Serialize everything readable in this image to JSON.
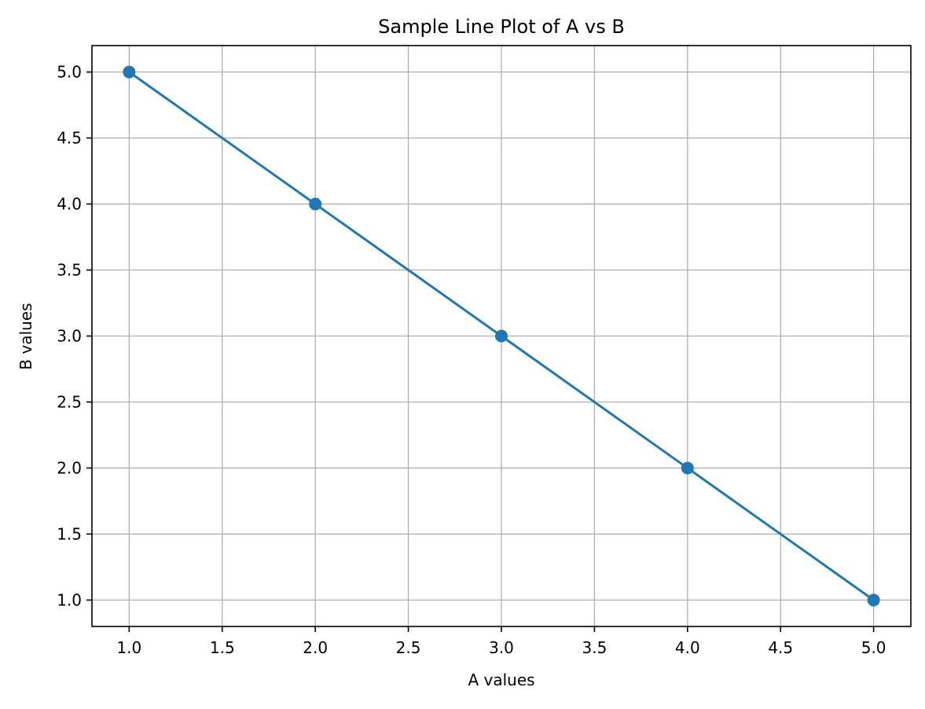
{
  "chart_data": {
    "type": "line",
    "title": "Sample Line Plot of A vs B",
    "xlabel": "A values",
    "ylabel": "B values",
    "xlim": [
      0.8,
      5.2
    ],
    "ylim": [
      0.8,
      5.2
    ],
    "x_ticks": [
      1.0,
      1.5,
      2.0,
      2.5,
      3.0,
      3.5,
      4.0,
      4.5,
      5.0
    ],
    "x_tick_labels": [
      "1.0",
      "1.5",
      "2.0",
      "2.5",
      "3.0",
      "3.5",
      "4.0",
      "4.5",
      "5.0"
    ],
    "y_ticks": [
      1.0,
      1.5,
      2.0,
      2.5,
      3.0,
      3.5,
      4.0,
      4.5,
      5.0
    ],
    "y_tick_labels": [
      "1.0",
      "1.5",
      "2.0",
      "2.5",
      "3.0",
      "3.5",
      "4.0",
      "4.5",
      "5.0"
    ],
    "grid": true,
    "legend": false,
    "series": [
      {
        "x": [
          1,
          2,
          3,
          4,
          5
        ],
        "y": [
          5,
          4,
          3,
          2,
          1
        ],
        "color": "#1f77b4",
        "marker": "circle"
      }
    ],
    "grid_color": "#b0b0b0",
    "axes_color": "#000000"
  }
}
